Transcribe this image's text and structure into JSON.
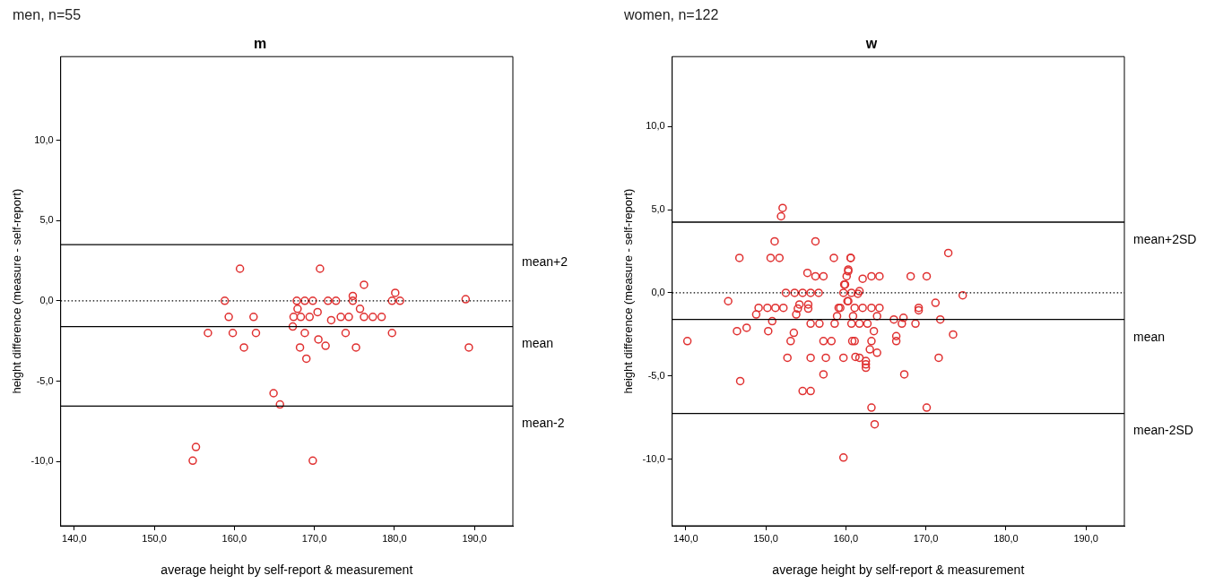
{
  "chart_data": [
    {
      "type": "scatter",
      "title": "m",
      "subtitle": "men, n=55",
      "xlabel": "average height by self-report & measurement",
      "ylabel": "height difference (measure - self-report)",
      "xlim": [
        138.3,
        194.8
      ],
      "ylim": [
        -14,
        15.2
      ],
      "xticks": [
        {
          "value": 140,
          "label": "140,0"
        },
        {
          "value": 150,
          "label": "150,0"
        },
        {
          "value": 160,
          "label": "160,0"
        },
        {
          "value": 170,
          "label": "170,0"
        },
        {
          "value": 180,
          "label": "180,0"
        },
        {
          "value": 190,
          "label": "190,0"
        }
      ],
      "yticks": [
        {
          "value": -10,
          "label": "-10,0"
        },
        {
          "value": -5,
          "label": "-5,0"
        },
        {
          "value": 0,
          "label": "0,0"
        },
        {
          "value": 5,
          "label": "5,0"
        },
        {
          "value": 10,
          "label": "10,0"
        }
      ],
      "grid": false,
      "legend": false,
      "marker": "circle",
      "ref_lines": [
        {
          "axis": "y",
          "value": 3.5,
          "label": "mean+2",
          "line_style": "solid"
        },
        {
          "axis": "y",
          "value": 0,
          "label": null,
          "line_style": "dotted"
        },
        {
          "axis": "y",
          "value": -1.6,
          "label": "mean",
          "line_style": "solid"
        },
        {
          "axis": "y",
          "value": -6.55,
          "label": "mean-2",
          "line_style": "solid"
        }
      ],
      "series": [
        {
          "color": "#e03030",
          "x": [
            160.7,
            170.7,
            158.8,
            167.8,
            168.8,
            169.8,
            171.7,
            172.7,
            174.8,
            174.8,
            176.2,
            180.1,
            179.7,
            180.7,
            188.9,
            159.3,
            162.4,
            167.9,
            167.4,
            168.3,
            169.4,
            170.4,
            172.1,
            173.3,
            174.3,
            175.7,
            176.2,
            177.3,
            178.4,
            167.3,
            156.7,
            159.8,
            162.7,
            168.8,
            173.9,
            179.7,
            161.2,
            168.2,
            170.5,
            171.4,
            169.0,
            175.2,
            189.3,
            164.9,
            165.7,
            155.2,
            154.8,
            169.8
          ],
          "values": [
            2,
            2,
            0,
            0,
            0,
            0,
            0,
            0,
            0.3,
            0,
            1,
            0.5,
            0,
            0,
            0.1,
            -1,
            -1,
            -0.5,
            -1,
            -1,
            -1,
            -0.7,
            -1.2,
            -1,
            -1,
            -0.5,
            -1,
            -1,
            -1,
            -1.6,
            -2,
            -2,
            -2,
            -2,
            -2,
            -2,
            -2.9,
            -2.9,
            -2.4,
            -2.8,
            -3.6,
            -2.9,
            -2.9,
            -5.75,
            -6.45,
            -9.1,
            -9.95,
            -9.95
          ]
        }
      ]
    },
    {
      "type": "scatter",
      "title": "w",
      "subtitle": "women, n=122",
      "xlabel": "average height by self-report & measurement",
      "ylabel": "height difference (measure - self-report)",
      "xlim": [
        138.3,
        194.8
      ],
      "ylim": [
        -14,
        14.2
      ],
      "xticks": [
        {
          "value": 140,
          "label": "140,0"
        },
        {
          "value": 150,
          "label": "150,0"
        },
        {
          "value": 160,
          "label": "160,0"
        },
        {
          "value": 170,
          "label": "170,0"
        },
        {
          "value": 180,
          "label": "180,0"
        },
        {
          "value": 190,
          "label": "190,0"
        }
      ],
      "yticks": [
        {
          "value": -10,
          "label": "-10,0"
        },
        {
          "value": -5,
          "label": "-5,0"
        },
        {
          "value": 0,
          "label": "0,0"
        },
        {
          "value": 5,
          "label": "5,0"
        },
        {
          "value": 10,
          "label": "10,0"
        }
      ],
      "grid": false,
      "legend": false,
      "marker": "circle",
      "ref_lines": [
        {
          "axis": "y",
          "value": 4.25,
          "label": "mean+2SD",
          "line_style": "solid"
        },
        {
          "axis": "y",
          "value": 0,
          "label": null,
          "line_style": "dotted"
        },
        {
          "axis": "y",
          "value": -1.6,
          "label": "mean",
          "line_style": "solid"
        },
        {
          "axis": "y",
          "value": -7.25,
          "label": "mean-2SD",
          "line_style": "solid"
        }
      ],
      "series": [
        {
          "color": "#e03030",
          "x": [
            152.1,
            151.9,
            151.1,
            156.2,
            146.7,
            150.6,
            151.7,
            158.5,
            160.6,
            155.2,
            156.2,
            157.2,
            160.3,
            152.5,
            153.6,
            154.6,
            155.6,
            156.6,
            159.9,
            159.7,
            145.3,
            149.1,
            150.2,
            151.2,
            152.2,
            154.2,
            155.3,
            154.0,
            155.3,
            148.8,
            153.8,
            160.2,
            159.1,
            158.9,
            150.8,
            155.6,
            156.7,
            158.6,
            146.4,
            147.6,
            150.3,
            153.5,
            140.2,
            153.1,
            157.2,
            158.2,
            160.8,
            160.6,
            160.3,
            160.1,
            162.1,
            163.2,
            164.2,
            168.1,
            170.1,
            172.8,
            159.8,
            160.7,
            161.5,
            161.7,
            160.3,
            159.3,
            161.1,
            162.1,
            163.2,
            164.2,
            163.9,
            160.9,
            169.1,
            169.1,
            171.2,
            174.6,
            166.0,
            167.2,
            167.0,
            168.7,
            171.8,
            160.7,
            161.7,
            162.7,
            163.5,
            173.4,
            161.1,
            163.2,
            166.3,
            166.3,
            163.0,
            163.9,
            152.7,
            155.6,
            157.5,
            159.7,
            161.2,
            161.7,
            162.5,
            162.5,
            162.5,
            171.6,
            146.8,
            157.2,
            167.3,
            154.6,
            155.6,
            163.2,
            170.1,
            163.6,
            159.7
          ],
          "values": [
            5.1,
            4.6,
            3.1,
            3.1,
            2.1,
            2.1,
            2.1,
            2.1,
            2.1,
            1.2,
            1,
            1,
            1.3,
            0,
            0,
            0,
            0,
            0,
            0.5,
            0,
            -0.5,
            -0.9,
            -0.9,
            -0.9,
            -0.9,
            -0.7,
            -0.7,
            -0.95,
            -0.95,
            -1.3,
            -1.3,
            -0.5,
            -0.9,
            -1.4,
            -1.7,
            -1.85,
            -1.85,
            -1.85,
            -2.3,
            -2.1,
            -2.3,
            -2.4,
            -2.9,
            -2.9,
            -2.9,
            -2.9,
            -2.9,
            2.1,
            1.4,
            1,
            0.85,
            1,
            1,
            1,
            1,
            2.4,
            0.5,
            0,
            -0.05,
            0.1,
            -0.5,
            -0.9,
            -0.9,
            -0.9,
            -0.9,
            -0.9,
            -1.4,
            -1.4,
            -0.9,
            -1.05,
            -0.6,
            -0.15,
            -1.6,
            -1.5,
            -1.85,
            -1.85,
            -1.6,
            -1.85,
            -1.85,
            -1.85,
            -2.3,
            -2.5,
            -2.9,
            -2.9,
            -2.6,
            -2.9,
            -3.4,
            -3.6,
            -3.9,
            -3.9,
            -3.9,
            -3.9,
            -3.85,
            -3.9,
            -4.1,
            -4.3,
            -4.5,
            -3.9,
            -5.3,
            -4.9,
            -4.9,
            -5.9,
            -5.9,
            -6.9,
            -6.9,
            -7.9,
            -9.9
          ]
        }
      ]
    }
  ]
}
